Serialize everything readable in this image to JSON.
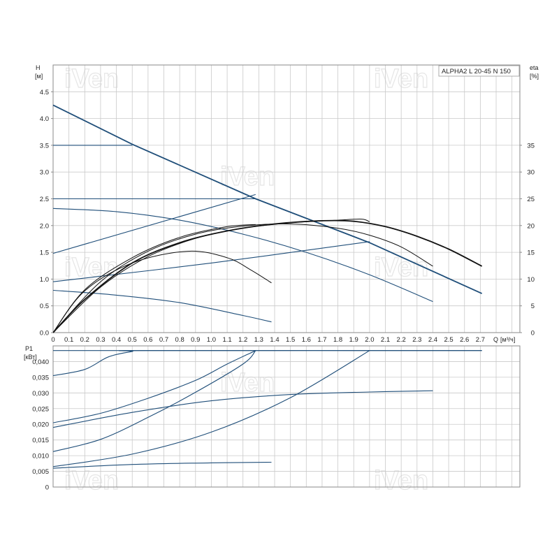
{
  "chart_data": [
    {
      "type": "line",
      "title": "ALPHA2 L 20-45 N 150",
      "ylabel": "H",
      "yunit": "[м]",
      "y2label": "eta",
      "y2unit": "[%]",
      "xlabel": "Q",
      "xunit": "[м³/ч]",
      "xlim": [
        0,
        2.95
      ],
      "ylim": [
        0,
        5.0
      ],
      "y2lim": [
        0,
        50
      ],
      "grid": true,
      "x_ticks": [
        "0",
        "0.1",
        "0.2",
        "0.3",
        "0.4",
        "0.5",
        "0.6",
        "0.7",
        "0.8",
        "0.9",
        "1.0",
        "1.1",
        "1.2",
        "1.3",
        "1.4",
        "1.5",
        "1.6",
        "1.7",
        "1.8",
        "1.9",
        "2.0",
        "2.1",
        "2.2",
        "2.3",
        "2.4",
        "2.5",
        "2.6",
        "2.7"
      ],
      "y_ticks": [
        "0.0",
        "0.5",
        "1.0",
        "1.5",
        "2.0",
        "2.5",
        "3.0",
        "3.5",
        "4.0",
        "4.5"
      ],
      "y2_ticks": [
        "0",
        "5",
        "10",
        "15",
        "20",
        "25",
        "30",
        "35"
      ],
      "series": [
        {
          "color": "#1f4e79",
          "width": "thick",
          "x": [
            0,
            0.5,
            1.28,
            2.0,
            2.71
          ],
          "y": [
            4.25,
            3.52,
            2.5,
            1.68,
            0.73
          ]
        },
        {
          "color": "#1f4e79",
          "x": [
            0,
            0.5
          ],
          "y": [
            3.5,
            3.5
          ]
        },
        {
          "color": "#1f4e79",
          "x": [
            0,
            1.28
          ],
          "y": [
            2.5,
            2.5
          ]
        },
        {
          "color": "#1f4e79",
          "x": [
            0,
            1.28
          ],
          "y": [
            1.48,
            2.58
          ]
        },
        {
          "color": "#1f4e79",
          "x": [
            0,
            0.4,
            0.8,
            1.2,
            1.6,
            2.0,
            2.4
          ],
          "y": [
            2.32,
            2.26,
            2.1,
            1.84,
            1.5,
            1.08,
            0.58
          ]
        },
        {
          "color": "#1f4e79",
          "x": [
            0,
            1.0,
            2.0
          ],
          "y": [
            0.95,
            1.3,
            1.7
          ]
        },
        {
          "color": "#1f4e79",
          "x": [
            0,
            0.4,
            0.8,
            1.2,
            1.38
          ],
          "y": [
            0.79,
            0.7,
            0.56,
            0.32,
            0.2
          ]
        },
        {
          "color": "#111111",
          "width": "thick",
          "x": [
            0,
            0.2,
            0.5,
            0.8,
            1.1,
            1.4,
            1.7,
            1.9,
            2.1,
            2.3,
            2.5,
            2.71
          ],
          "y": [
            0,
            0.62,
            1.3,
            1.68,
            1.9,
            2.03,
            2.09,
            2.08,
            1.98,
            1.8,
            1.56,
            1.24
          ]
        },
        {
          "color": "#111111",
          "x": [
            0,
            0.3,
            0.6,
            0.9,
            1.2,
            1.5,
            1.8,
            1.95,
            2.0
          ],
          "y": [
            0,
            0.85,
            1.42,
            1.76,
            1.95,
            2.05,
            2.1,
            2.12,
            2.07
          ]
        },
        {
          "color": "#111111",
          "x": [
            0,
            0.3,
            0.6,
            0.9,
            1.2,
            1.5,
            1.8,
            2.0,
            2.2,
            2.4
          ],
          "y": [
            0,
            0.95,
            1.52,
            1.84,
            1.99,
            2.03,
            1.95,
            1.82,
            1.6,
            1.24
          ]
        },
        {
          "color": "#111111",
          "x": [
            0,
            0.2,
            0.5,
            0.8,
            1.1,
            1.28
          ],
          "y": [
            0,
            0.8,
            1.4,
            1.78,
            1.98,
            2.02
          ]
        },
        {
          "color": "#111111",
          "x": [
            0,
            0.2,
            0.5,
            0.85,
            1.1,
            1.25,
            1.38
          ],
          "y": [
            0,
            0.78,
            1.3,
            1.52,
            1.4,
            1.17,
            0.93
          ]
        }
      ]
    },
    {
      "type": "line",
      "ylabel": "P1",
      "yunit": "[кВт]",
      "xlim": [
        0,
        2.95
      ],
      "ylim": [
        0,
        0.045
      ],
      "grid": true,
      "y_ticks": [
        "0",
        "0,005",
        "0,010",
        "0,015",
        "0,020",
        "0,025",
        "0,030",
        "0,035",
        "0,040"
      ],
      "series": [
        {
          "color": "#1f4e79",
          "x": [
            0,
            2.71
          ],
          "y": [
            0.0435,
            0.0435
          ]
        },
        {
          "color": "#1f4e79",
          "x": [
            0,
            0.2,
            0.35,
            0.5,
            0.6,
            2.71
          ],
          "y": [
            0.0355,
            0.0375,
            0.0415,
            0.0432,
            0.0435,
            0.0435
          ]
        },
        {
          "color": "#1f4e79",
          "x": [
            0,
            0.3,
            0.6,
            0.9,
            1.1,
            1.28
          ],
          "y": [
            0.0205,
            0.0235,
            0.0283,
            0.034,
            0.0392,
            0.0435
          ]
        },
        {
          "color": "#1f4e79",
          "x": [
            0,
            0.3,
            0.6,
            0.9,
            1.2,
            1.28
          ],
          "y": [
            0.0113,
            0.0152,
            0.0222,
            0.0302,
            0.0392,
            0.0435
          ]
        },
        {
          "color": "#1f4e79",
          "x": [
            0,
            0.5,
            1.0,
            1.5,
            2.0
          ],
          "y": [
            0.0065,
            0.0105,
            0.0175,
            0.0285,
            0.0435
          ]
        },
        {
          "color": "#1f4e79",
          "x": [
            0,
            0.5,
            1.0,
            1.5,
            2.0,
            2.4
          ],
          "y": [
            0.019,
            0.0238,
            0.0275,
            0.0295,
            0.0303,
            0.0307
          ]
        },
        {
          "color": "#1f4e79",
          "x": [
            0,
            0.5,
            1.0,
            1.38
          ],
          "y": [
            0.006,
            0.0072,
            0.0077,
            0.0079
          ]
        }
      ]
    }
  ]
}
